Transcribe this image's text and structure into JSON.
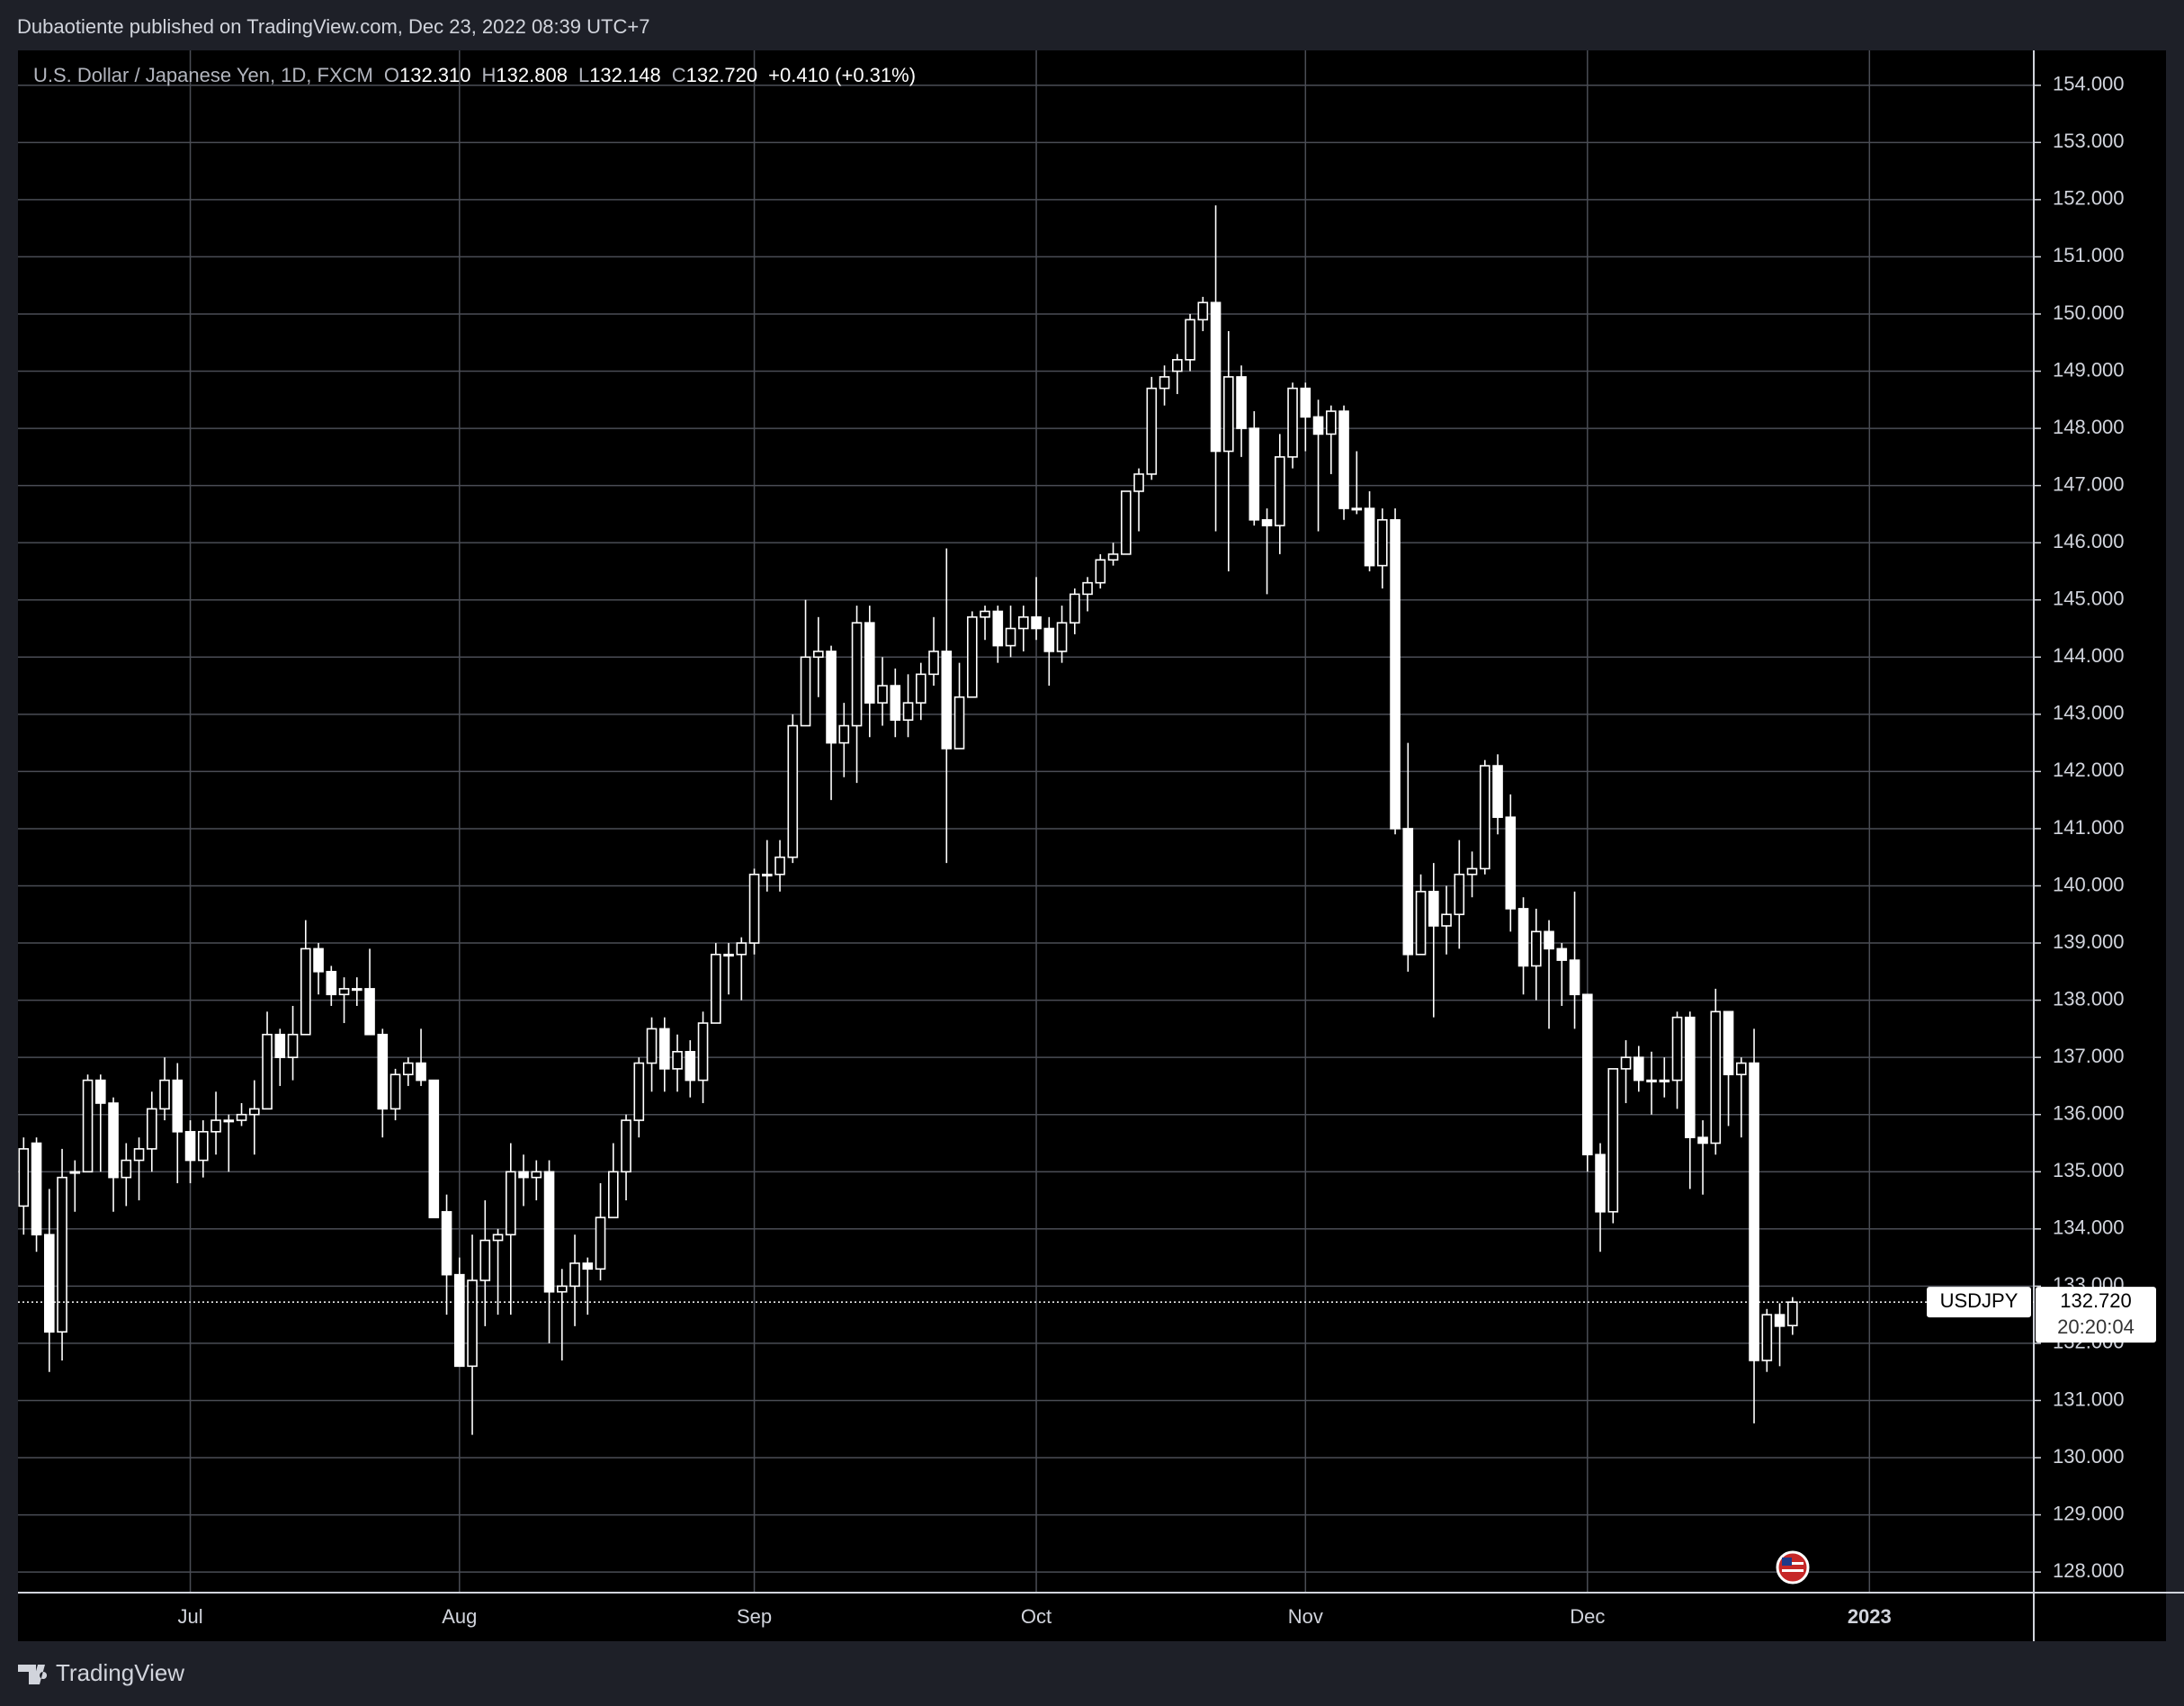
{
  "header": {
    "published": "Dubaotiente published on TradingView.com, Dec 23, 2022 08:39 UTC+7"
  },
  "footer": {
    "brand": "TradingView"
  },
  "chart_data": {
    "type": "candlestick",
    "legend": {
      "symbol": "U.S. Dollar / Japanese Yen, 1D, FXCM",
      "open_label": "O",
      "open": "132.310",
      "high_label": "H",
      "high": "132.808",
      "low_label": "L",
      "low": "132.148",
      "close_label": "C",
      "close": "132.720",
      "change": "+0.410 (+0.31%)"
    },
    "price_label": {
      "symbol": "USDJPY",
      "price": "132.720",
      "countdown": "20:20:04"
    },
    "categories": [
      null,
      null,
      null,
      null,
      null,
      null,
      null,
      null,
      null,
      null,
      null,
      null,
      null,
      "Jul",
      null,
      null,
      null,
      null,
      null,
      null,
      null,
      null,
      null,
      null,
      null,
      null,
      null,
      null,
      null,
      null,
      null,
      null,
      null,
      null,
      "Aug",
      null,
      null,
      null,
      null,
      null,
      null,
      null,
      null,
      null,
      null,
      null,
      null,
      null,
      null,
      null,
      null,
      null,
      null,
      null,
      null,
      null,
      null,
      "Sep",
      null,
      null,
      null,
      null,
      null,
      null,
      null,
      null,
      null,
      null,
      null,
      null,
      null,
      null,
      null,
      null,
      null,
      null,
      null,
      null,
      null,
      "Oct",
      null,
      null,
      null,
      null,
      null,
      null,
      null,
      null,
      null,
      null,
      null,
      null,
      null,
      null,
      null,
      null,
      null,
      null,
      null,
      null,
      "Nov",
      null,
      null,
      null,
      null,
      null,
      null,
      null,
      null,
      null,
      null,
      null,
      null,
      null,
      null,
      null,
      null,
      null,
      null,
      null,
      null,
      null,
      "Dec",
      null,
      null,
      null,
      null,
      null,
      null,
      null,
      null,
      null,
      null,
      null,
      null,
      null,
      null,
      null,
      null,
      null,
      null,
      null,
      null,
      null,
      "2023"
    ],
    "open": [
      134.4,
      135.5,
      133.9,
      132.2,
      135.0,
      135.0,
      136.6,
      136.2,
      134.9,
      135.2,
      135.4,
      136.1,
      136.6,
      135.7,
      135.2,
      135.7,
      135.9,
      135.9,
      136.0,
      136.1,
      137.4,
      137.0,
      137.4,
      138.9,
      138.5,
      138.1,
      138.2,
      138.2,
      137.4,
      136.1,
      136.7,
      136.9,
      136.6,
      134.3,
      133.2,
      131.6,
      133.1,
      133.8,
      133.9,
      135.0,
      134.9,
      135.0,
      132.9,
      133.0,
      133.4,
      133.3,
      134.2,
      135.0,
      135.9,
      136.9,
      137.5,
      136.8,
      137.1,
      136.6,
      137.6,
      138.8,
      138.8,
      139.0,
      140.2,
      140.2,
      140.5,
      142.8,
      144.0,
      144.1,
      142.5,
      142.8,
      144.6,
      143.2,
      143.5,
      142.9,
      143.2,
      143.7,
      144.1,
      142.4,
      143.3,
      144.7,
      144.8,
      144.2,
      144.5,
      144.7,
      144.5,
      144.1,
      144.6,
      145.1,
      145.3,
      145.7,
      145.8,
      146.9,
      147.2,
      148.7,
      149.0,
      149.2,
      149.9,
      150.2,
      147.6,
      148.9,
      148.0,
      146.4,
      146.3,
      147.5,
      148.7,
      148.2,
      147.9,
      148.3,
      146.6,
      146.6,
      145.6,
      146.4,
      141.0,
      138.8,
      139.9,
      139.3,
      139.5,
      140.2,
      140.3,
      142.1,
      141.2,
      139.6,
      138.6,
      139.2,
      138.9,
      138.7,
      138.1,
      135.3,
      134.3,
      136.8,
      137.0,
      136.6,
      136.6,
      136.6,
      137.7,
      135.6,
      135.5,
      137.8,
      136.7,
      136.9,
      131.7,
      132.5,
      132.31,
      null,
      null,
      null,
      null,
      null,
      null
    ],
    "high": [
      135.6,
      135.6,
      134.7,
      135.4,
      135.2,
      136.7,
      136.7,
      136.3,
      135.5,
      135.6,
      136.4,
      137.0,
      136.9,
      135.9,
      135.9,
      136.4,
      136.0,
      136.2,
      136.6,
      137.8,
      137.5,
      137.9,
      139.4,
      139.0,
      138.6,
      138.4,
      138.4,
      138.9,
      137.5,
      136.8,
      137.0,
      137.5,
      136.6,
      134.6,
      133.5,
      133.9,
      134.5,
      134.0,
      135.5,
      135.3,
      135.2,
      135.2,
      133.3,
      133.9,
      133.5,
      134.8,
      135.5,
      136.0,
      137.0,
      137.7,
      137.7,
      137.4,
      137.3,
      137.8,
      139.0,
      139.0,
      139.1,
      140.3,
      140.8,
      140.8,
      143.0,
      145.0,
      144.7,
      144.2,
      143.2,
      144.9,
      144.9,
      144.0,
      143.8,
      143.7,
      143.9,
      144.7,
      145.9,
      143.9,
      144.8,
      144.9,
      144.9,
      144.9,
      144.9,
      145.4,
      144.7,
      144.9,
      145.2,
      145.4,
      145.8,
      146.0,
      146.9,
      147.3,
      148.9,
      149.1,
      149.3,
      150.0,
      150.3,
      151.9,
      149.7,
      149.1,
      148.3,
      146.6,
      147.9,
      148.8,
      148.8,
      148.5,
      148.4,
      148.4,
      147.6,
      146.9,
      146.6,
      146.6,
      142.5,
      140.2,
      140.4,
      140.0,
      140.8,
      140.6,
      142.2,
      142.3,
      141.6,
      139.8,
      139.6,
      139.4,
      139.0,
      139.9,
      138.1,
      135.5,
      136.8,
      137.3,
      137.2,
      137.1,
      137.0,
      137.8,
      137.8,
      135.9,
      138.2,
      137.8,
      137.0,
      137.5,
      132.6,
      132.7,
      132.808,
      null,
      null,
      null,
      null,
      null,
      null
    ],
    "low": [
      133.9,
      133.6,
      131.5,
      131.7,
      134.3,
      135.0,
      135.0,
      134.3,
      134.4,
      134.5,
      135.0,
      135.9,
      134.8,
      134.8,
      134.9,
      135.3,
      135.0,
      135.8,
      135.3,
      136.1,
      136.5,
      136.6,
      137.4,
      138.1,
      137.9,
      137.6,
      137.9,
      137.4,
      135.6,
      135.9,
      136.5,
      136.5,
      134.2,
      132.5,
      131.6,
      130.4,
      132.3,
      132.5,
      132.5,
      134.4,
      134.5,
      132.0,
      131.7,
      132.3,
      132.5,
      133.1,
      134.2,
      134.5,
      135.6,
      136.4,
      136.4,
      136.4,
      136.3,
      136.2,
      137.6,
      138.1,
      138.0,
      138.8,
      139.9,
      139.9,
      140.4,
      142.8,
      143.3,
      141.5,
      141.9,
      141.8,
      142.6,
      142.8,
      142.6,
      142.6,
      142.9,
      143.5,
      140.4,
      142.4,
      143.3,
      144.3,
      143.9,
      144.0,
      144.1,
      144.3,
      143.5,
      143.9,
      144.4,
      144.8,
      145.2,
      145.6,
      145.8,
      146.2,
      147.1,
      148.4,
      148.6,
      149.0,
      149.7,
      146.2,
      145.5,
      147.5,
      146.3,
      145.1,
      145.8,
      147.3,
      147.6,
      146.2,
      147.2,
      146.4,
      146.5,
      145.5,
      145.2,
      140.9,
      138.5,
      138.8,
      137.7,
      138.8,
      138.9,
      139.8,
      140.2,
      140.9,
      139.2,
      138.1,
      138.0,
      137.5,
      137.9,
      137.5,
      135.0,
      133.6,
      134.1,
      136.2,
      136.4,
      136.0,
      136.3,
      136.1,
      134.7,
      134.6,
      135.3,
      135.8,
      135.6,
      130.6,
      131.5,
      131.6,
      132.148,
      null,
      null,
      null,
      null,
      null,
      null
    ],
    "close": [
      135.4,
      133.9,
      132.2,
      134.9,
      135.0,
      136.6,
      136.2,
      134.9,
      135.2,
      135.4,
      136.1,
      136.6,
      135.7,
      135.2,
      135.7,
      135.9,
      135.9,
      136.0,
      136.1,
      137.4,
      137.0,
      137.4,
      138.9,
      138.5,
      138.1,
      138.2,
      138.2,
      137.4,
      136.1,
      136.7,
      136.9,
      136.6,
      134.2,
      133.2,
      131.6,
      133.1,
      133.8,
      133.9,
      135.0,
      134.9,
      135.0,
      132.9,
      133.0,
      133.4,
      133.3,
      134.2,
      135.0,
      135.9,
      136.9,
      137.5,
      136.8,
      137.1,
      136.6,
      137.6,
      138.8,
      138.8,
      139.0,
      140.2,
      140.2,
      140.5,
      142.8,
      144.0,
      144.1,
      142.5,
      142.8,
      144.6,
      143.2,
      143.5,
      142.9,
      143.2,
      143.7,
      144.1,
      142.4,
      143.3,
      144.7,
      144.8,
      144.2,
      144.5,
      144.7,
      144.5,
      144.1,
      144.6,
      145.1,
      145.3,
      145.7,
      145.8,
      146.9,
      147.2,
      148.7,
      148.9,
      149.2,
      149.9,
      150.2,
      147.6,
      148.9,
      148.0,
      146.4,
      146.3,
      147.5,
      148.7,
      148.2,
      147.9,
      148.3,
      146.6,
      146.6,
      145.6,
      146.4,
      141.0,
      138.8,
      139.9,
      139.3,
      139.5,
      140.2,
      140.3,
      142.1,
      141.2,
      139.6,
      138.6,
      139.2,
      138.9,
      138.7,
      138.1,
      135.3,
      134.3,
      136.8,
      137.0,
      136.6,
      136.6,
      136.6,
      137.7,
      135.6,
      135.5,
      137.8,
      136.7,
      136.9,
      131.7,
      132.5,
      132.3,
      132.72,
      null,
      null,
      null,
      null,
      null,
      null
    ],
    "color": "#ffffff",
    "background": "#000000",
    "grid_color": "#4a4d55",
    "grid": true,
    "ylim": [
      127.64,
      154.61
    ],
    "yticks": [
      {
        "value": 128,
        "label": "128.000"
      },
      {
        "value": 129,
        "label": "129.000"
      },
      {
        "value": 130,
        "label": "130.000"
      },
      {
        "value": 131,
        "label": "131.000"
      },
      {
        "value": 132,
        "label": "132.000"
      },
      {
        "value": 133,
        "label": "133.000"
      },
      {
        "value": 134,
        "label": "134.000"
      },
      {
        "value": 135,
        "label": "135.000"
      },
      {
        "value": 136,
        "label": "136.000"
      },
      {
        "value": 137,
        "label": "137.000"
      },
      {
        "value": 138,
        "label": "138.000"
      },
      {
        "value": 139,
        "label": "139.000"
      },
      {
        "value": 140,
        "label": "140.000"
      },
      {
        "value": 141,
        "label": "141.000"
      },
      {
        "value": 142,
        "label": "142.000"
      },
      {
        "value": 143,
        "label": "143.000"
      },
      {
        "value": 144,
        "label": "144.000"
      },
      {
        "value": 145,
        "label": "145.000"
      },
      {
        "value": 146,
        "label": "146.000"
      },
      {
        "value": 147,
        "label": "147.000"
      },
      {
        "value": 148,
        "label": "148.000"
      },
      {
        "value": 149,
        "label": "149.000"
      },
      {
        "value": 150,
        "label": "150.000"
      },
      {
        "value": 151,
        "label": "151.000"
      },
      {
        "value": 152,
        "label": "152.000"
      },
      {
        "value": 153,
        "label": "153.000"
      },
      {
        "value": 154,
        "label": "154.000"
      }
    ]
  }
}
